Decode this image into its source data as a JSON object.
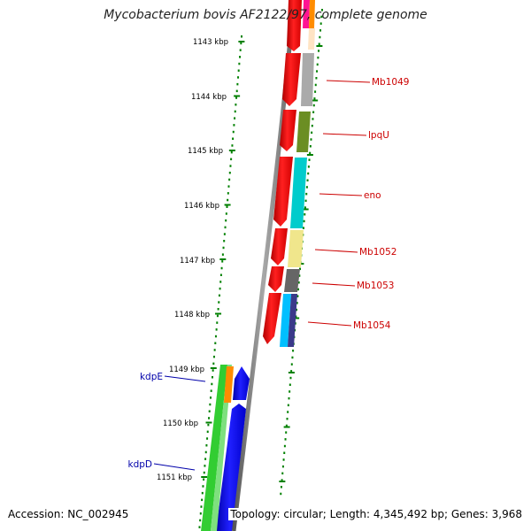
{
  "title": "Mycobacterium bovis AF2122/97, complete genome",
  "footer": {
    "accession": "Accession: NC_002945",
    "stats": "Topology: circular; Length: 4,345,492 bp; Genes: 3,968"
  },
  "colors": {
    "forward_arrow": "#ff0000",
    "reverse_arrow": "#0000ff",
    "backbone": "#808080",
    "tick": "#008000",
    "forward_label": "#cc0000",
    "reverse_label": "#0000aa"
  },
  "scale_labels": [
    "1143 kbp",
    "1144 kbp",
    "1145 kbp",
    "1146 kbp",
    "1147 kbp",
    "1148 kbp",
    "1149 kbp",
    "1150 kbp",
    "1151 kbp"
  ],
  "gene_labels": [
    {
      "text": "Mb1049",
      "strand": "forward"
    },
    {
      "text": "lpqU",
      "strand": "forward"
    },
    {
      "text": "eno",
      "strand": "forward"
    },
    {
      "text": "Mb1052",
      "strand": "forward"
    },
    {
      "text": "Mb1053",
      "strand": "forward"
    },
    {
      "text": "Mb1054",
      "strand": "forward"
    },
    {
      "text": "kdpE",
      "strand": "reverse"
    },
    {
      "text": "kdpD",
      "strand": "reverse"
    }
  ],
  "category_colors": {
    "outer_forward": [
      "#ff0000",
      "#ff1493",
      "#ff8c00",
      "#aaaaaa",
      "#6b8e23",
      "#00cccc",
      "#f0e68c",
      "#666666",
      "#00bfff",
      "#3a3a8a"
    ],
    "outer_reverse": [
      "#32cd32",
      "#ff8c00"
    ]
  }
}
